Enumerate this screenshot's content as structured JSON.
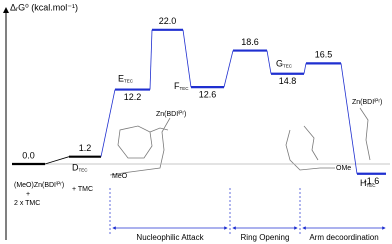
{
  "chart_data": {
    "type": "energy_profile",
    "y_label": "ΔᵣG⁰ (kcal.mol⁻¹)",
    "categories": [
      null,
      "D",
      "E",
      null,
      "F",
      null,
      "G",
      null,
      "H"
    ],
    "species_subscript": "TEC",
    "values": [
      0.0,
      1.2,
      12.2,
      22.0,
      12.6,
      18.6,
      14.8,
      16.5,
      -1.6
    ],
    "value_labels": [
      "0.0",
      "1.2",
      "12.2",
      "22.0",
      "12.6",
      "18.6",
      "14.8",
      "16.5",
      "-1.6"
    ],
    "colors": [
      "#000000",
      "#000000",
      "#1f2fd0",
      "#1f2fd0",
      "#1f2fd0",
      "#1f2fd0",
      "#1f2fd0",
      "#1f2fd0",
      "#1f2fd0"
    ],
    "stages": [
      "Nucleophilic Attack",
      "Ring Opening",
      "Arm decoordination"
    ],
    "annotations": [
      "(MeO)Zn(BDIⁱᴾʳ)",
      "+",
      "2 x TMC",
      "+ TMC",
      "Zn(BDIⁱᴾʳ)",
      "MeO",
      "Zn(BDIⁱᴾʳ)",
      "OMe"
    ]
  }
}
